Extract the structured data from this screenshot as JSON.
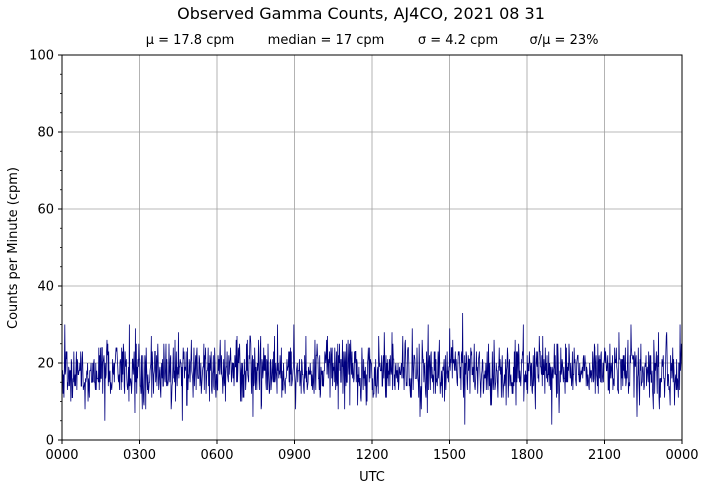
{
  "chart_data": {
    "type": "line",
    "title": "Observed Gamma Counts, AJ4CO, 2021 08 31",
    "subtitle": {
      "mean": "μ = 17.8 cpm",
      "median": "median = 17 cpm",
      "sigma": "σ = 4.2 cpm",
      "ratio": "σ/μ = 23%"
    },
    "xlabel": "UTC",
    "ylabel": "Counts per Minute (cpm)",
    "x_ticks": [
      "0000",
      "0300",
      "0600",
      "0900",
      "1200",
      "1500",
      "1800",
      "2100",
      "0000"
    ],
    "y_ticks": [
      "0",
      "20",
      "40",
      "60",
      "80",
      "100"
    ],
    "xlim_hours": [
      0,
      24
    ],
    "ylim": [
      0,
      100
    ],
    "grid": true,
    "line_color": "#00007f",
    "series": [
      {
        "interval_minutes": 1,
        "mean": 17.8,
        "median": 17,
        "sigma": 4.2,
        "min": 4,
        "max": 33,
        "notable_points": [
          {
            "time_utc": "0430",
            "value": 28
          },
          {
            "time_utc": "0820",
            "value": 30
          },
          {
            "time_utc": "1410",
            "value": 30
          },
          {
            "time_utc": "1530",
            "value": 33
          },
          {
            "time_utc": "1535",
            "value": 4
          },
          {
            "time_utc": "2355",
            "value": 30
          }
        ]
      }
    ]
  }
}
